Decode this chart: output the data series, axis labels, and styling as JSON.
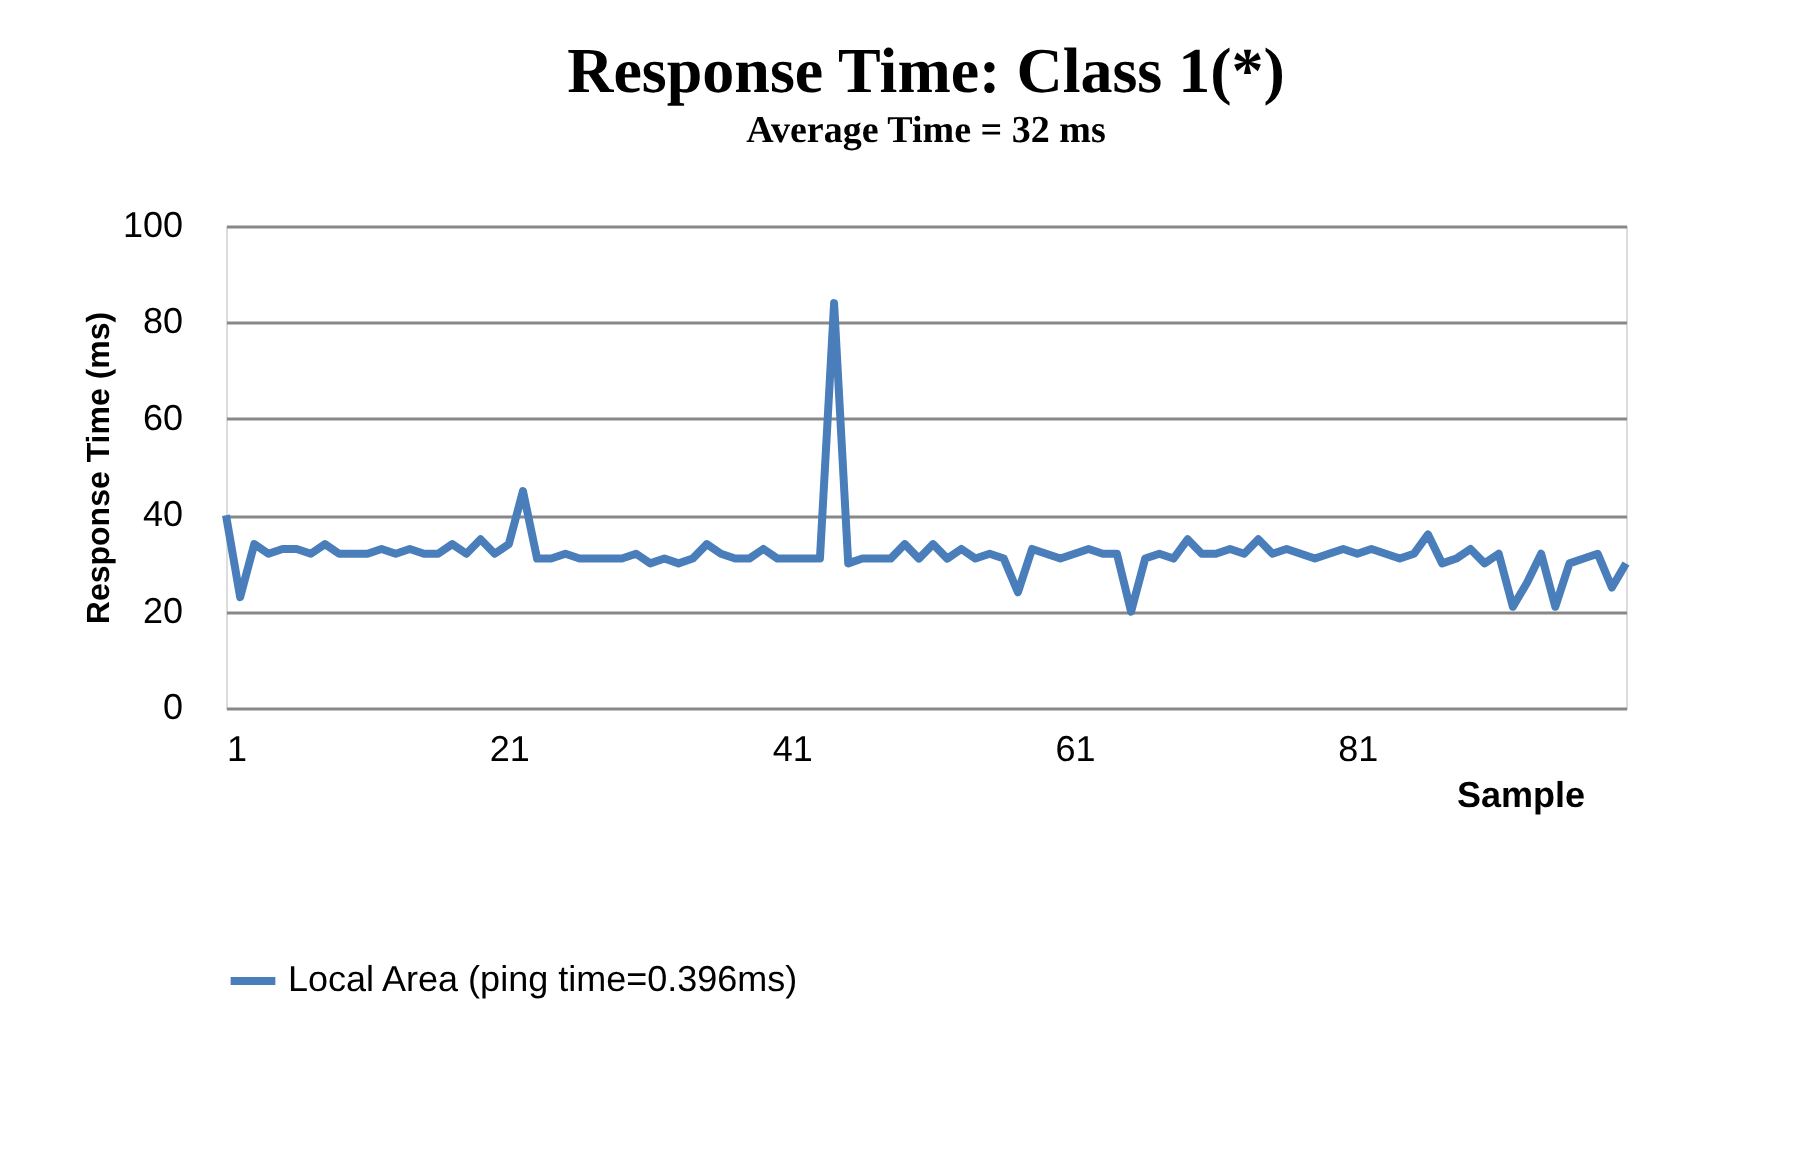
{
  "chart_data": {
    "type": "line",
    "title": "Response Time: Class 1(*)",
    "subtitle": "Average Time = 32 ms",
    "xlabel": "Sample",
    "ylabel": "Response Time (ms)",
    "x": [
      1,
      2,
      3,
      4,
      5,
      6,
      7,
      8,
      9,
      10,
      11,
      12,
      13,
      14,
      15,
      16,
      17,
      18,
      19,
      20,
      21,
      22,
      23,
      24,
      25,
      26,
      27,
      28,
      29,
      30,
      31,
      32,
      33,
      34,
      35,
      36,
      37,
      38,
      39,
      40,
      41,
      42,
      43,
      44,
      45,
      46,
      47,
      48,
      49,
      50,
      51,
      52,
      53,
      54,
      55,
      56,
      57,
      58,
      59,
      60,
      61,
      62,
      63,
      64,
      65,
      66,
      67,
      68,
      69,
      70,
      71,
      72,
      73,
      74,
      75,
      76,
      77,
      78,
      79,
      80,
      81,
      82,
      83,
      84,
      85,
      86,
      87,
      88,
      89,
      90,
      91,
      92,
      93,
      94,
      95,
      96,
      97,
      98,
      99,
      100
    ],
    "series": [
      {
        "name": "Local Area (ping time=0.396ms)",
        "color": "#4a7ebb",
        "values": [
          40,
          23,
          34,
          32,
          33,
          33,
          32,
          34,
          32,
          32,
          32,
          33,
          32,
          33,
          32,
          32,
          34,
          32,
          35,
          32,
          34,
          45,
          31,
          31,
          32,
          31,
          31,
          31,
          31,
          32,
          30,
          31,
          30,
          31,
          34,
          32,
          31,
          31,
          33,
          31,
          31,
          31,
          31,
          84,
          30,
          31,
          31,
          31,
          34,
          31,
          34,
          31,
          33,
          31,
          32,
          31,
          24,
          33,
          32,
          31,
          32,
          33,
          32,
          32,
          20,
          31,
          32,
          31,
          35,
          32,
          32,
          33,
          32,
          35,
          32,
          33,
          32,
          31,
          32,
          33,
          32,
          33,
          32,
          31,
          32,
          36,
          30,
          31,
          33,
          30,
          32,
          21,
          26,
          32,
          21,
          30,
          31,
          32,
          25,
          30
        ]
      }
    ],
    "xlim": [
      1,
      100
    ],
    "xticks": [
      1,
      21,
      41,
      61,
      81
    ],
    "ylim": [
      0,
      100
    ],
    "yticks": [
      0,
      20,
      40,
      60,
      80,
      100
    ],
    "grid": "y",
    "legend": "bottom",
    "marker": "none",
    "line_style": "solid"
  }
}
